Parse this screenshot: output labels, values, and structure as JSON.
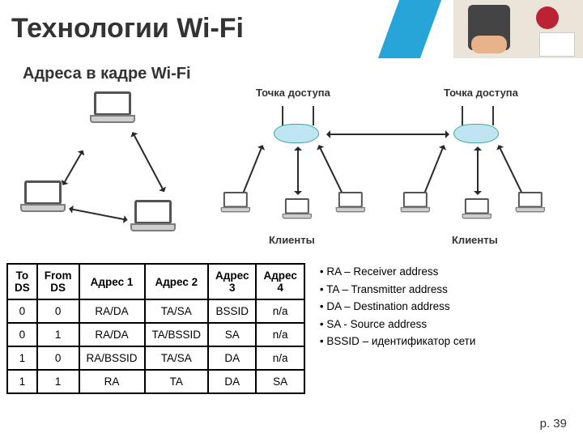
{
  "title": "Технологии Wi-Fi",
  "subtitle": "Адреса в кадре Wi-Fi",
  "right_topo": {
    "ap_label": "Точка доступа",
    "client_label": "Клиенты"
  },
  "table": {
    "headers": [
      "To DS",
      "From DS",
      "Адрес 1",
      "Адрес 2",
      "Адрес 3",
      "Адрес 4"
    ],
    "rows": [
      [
        "0",
        "0",
        "RA/DA",
        "TA/SA",
        "BSSID",
        "n/a"
      ],
      [
        "0",
        "1",
        "RA/DA",
        "TA/BSSID",
        "SA",
        "n/a"
      ],
      [
        "1",
        "0",
        "RA/BSSID",
        "TA/SA",
        "DA",
        "n/a"
      ],
      [
        "1",
        "1",
        "RA",
        "TA",
        "DA",
        "SA"
      ]
    ]
  },
  "legend": [
    "RA – Receiver address",
    "TA – Transmitter address",
    "DA – Destination address",
    "SA - Source address",
    "BSSID – идентификатор сети"
  ],
  "page_number": "p. 39",
  "colors": {
    "accent": "#27a4d8",
    "text": "#333333",
    "border": "#000000"
  }
}
